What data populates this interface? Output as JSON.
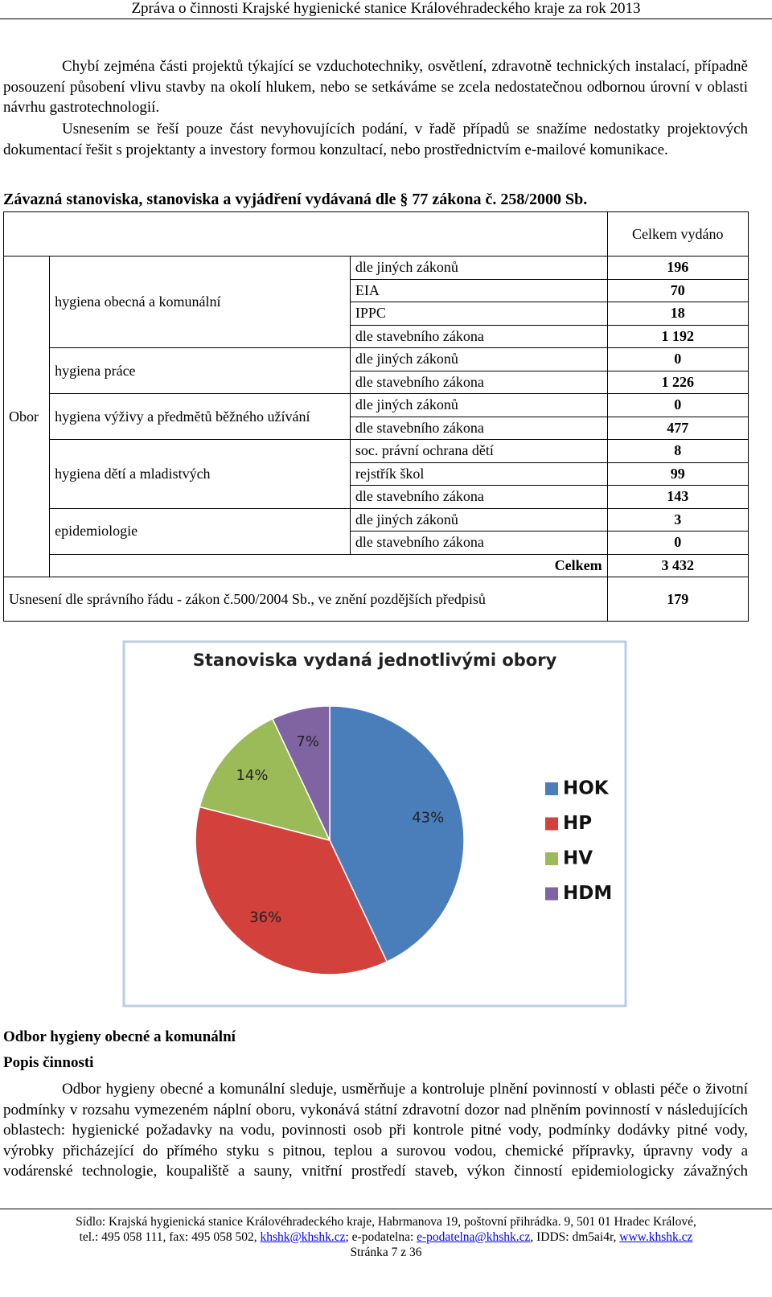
{
  "header": {
    "title": "Zpráva o činnosti Krajské hygienické stanice Královéhradeckého kraje za rok 2013"
  },
  "paragraphs": [
    "Chybí zejména části projektů týkající se vzduchotechniky, osvětlení, zdravotně technických instalací, případně posouzení působení vlivu stavby na okolí hlukem, nebo se setkáváme se zcela nedostatečnou odbornou úrovní v oblasti návrhu gastrotechnologií.",
    "Usnesením se řeší pouze část nevyhovujících podání, v řadě případů se snažíme nedostatky projektových dokumentací řešit s projektanty a investory formou konzultací, nebo prostřednictvím e-mailové komunikace."
  ],
  "table_heading": "Závazná stanoviska, stanoviska a vyjádření vydávaná dle § 77 zákona č. 258/2000 Sb.",
  "table": {
    "header": "Celkem vydáno",
    "row_label": "Obor",
    "groups": [
      {
        "name": "hygiena obecná a komunální",
        "rows": [
          {
            "label": "dle jiných zákonů",
            "value": "196"
          },
          {
            "label": "EIA",
            "value": "70"
          },
          {
            "label": "IPPC",
            "value": "18"
          },
          {
            "label": "dle stavebního zákona",
            "value": "1 192"
          }
        ]
      },
      {
        "name": "hygiena práce",
        "rows": [
          {
            "label": "dle jiných zákonů",
            "value": "0"
          },
          {
            "label": "dle stavebního zákona",
            "value": "1 226"
          }
        ]
      },
      {
        "name": "hygiena výživy a předmětů běžného užívání",
        "rows": [
          {
            "label": "dle jiných zákonů",
            "value": "0"
          },
          {
            "label": "dle stavebního zákona",
            "value": "477"
          }
        ]
      },
      {
        "name": "hygiena dětí a mladistvých",
        "rows": [
          {
            "label": "soc. právní ochrana dětí",
            "value": "8"
          },
          {
            "label": "rejstřík škol",
            "value": "99"
          },
          {
            "label": "dle stavebního zákona",
            "value": "143"
          }
        ]
      },
      {
        "name": "epidemiologie",
        "rows": [
          {
            "label": "dle jiných zákonů",
            "value": "3"
          },
          {
            "label": "dle stavebního zákona",
            "value": "0"
          }
        ]
      }
    ],
    "total_label": "Celkem",
    "total": "3 432",
    "resolution_label": "Usnesení dle správního řádu - zákon č.500/2004 Sb., ve znění pozdějších předpisů",
    "resolution_value": "179"
  },
  "chart_data": {
    "type": "pie",
    "title": "Stanoviska vydaná jednotlivými obory",
    "categories": [
      "HOK",
      "HP",
      "HV",
      "HDM"
    ],
    "values": [
      43,
      36,
      14,
      7
    ],
    "value_labels": [
      "43%",
      "36%",
      "14%",
      "7%"
    ],
    "colors": [
      "#4a7ebb",
      "#d2413c",
      "#9bbb59",
      "#8064a2"
    ]
  },
  "section": {
    "title": "Odbor hygieny obecné a komunální",
    "subtitle": "Popis činnosti",
    "text": "Odbor hygieny obecné a komunální sleduje, usměrňuje a kontroluje plnění povinností v oblasti péče o životní podmínky v rozsahu vymezeném náplní oboru, vykonává státní zdravotní dozor nad plněním povinností v následujících oblastech: hygienické požadavky na vodu, povinnosti osob při kontrole pitné vody, podmínky dodávky pitné vody, výrobky přicházející do přímého styku s pitnou, teplou a surovou vodou, chemické přípravky, úpravny vody a vodárenské technologie, koupaliště a sauny, vnitřní prostředí staveb, výkon činností epidemiologicky závažných (holičství,"
  },
  "footer": {
    "line1": "Sídlo: Krajská hygienická stanice Královéhradeckého kraje, Habrmanova 19, poštovní přihrádka. 9, 501 01 Hradec Králové,",
    "line2": [
      "tel.: 495 058 111, fax: 495 058 502, ",
      "khshk@khshk.cz",
      "; e-podatelna: ",
      "e-podatelna@khshk.cz",
      ", IDDS: dm5ai4r, ",
      "www.khshk.cz"
    ],
    "page": "Stránka 7 z 36"
  }
}
